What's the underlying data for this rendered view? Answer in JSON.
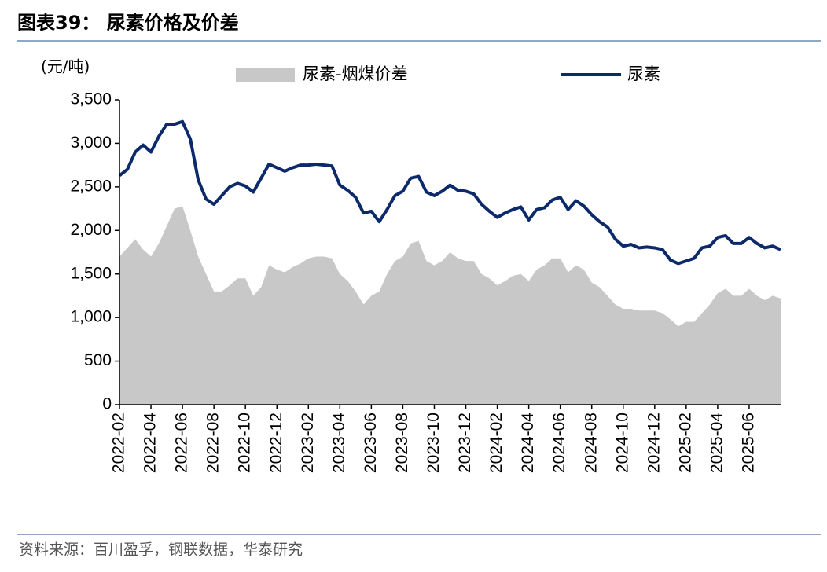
{
  "chart_data": {
    "type": "area-line",
    "title": "图表39： 尿素价格及价差",
    "unit_label": "(元/吨)",
    "source": "资料来源：百川盈孚，钢联数据，华泰研究",
    "categories": [
      "2022-02",
      null,
      null,
      null,
      "2022-04",
      null,
      null,
      null,
      "2022-06",
      null,
      null,
      null,
      "2022-08",
      null,
      null,
      null,
      "2022-10",
      null,
      null,
      null,
      "2022-12",
      null,
      null,
      null,
      "2023-02",
      null,
      null,
      null,
      "2023-04",
      null,
      null,
      null,
      "2023-06",
      null,
      null,
      null,
      "2023-08",
      null,
      null,
      null,
      "2023-10",
      null,
      null,
      null,
      "2023-12",
      null,
      null,
      null,
      "2024-02",
      null,
      null,
      null,
      "2024-04",
      null,
      null,
      null,
      "2024-06",
      null,
      null,
      null,
      "2024-08",
      null,
      null,
      null,
      "2024-10",
      null,
      null,
      null,
      "2024-12",
      null,
      null,
      null,
      "2025-02",
      null,
      null,
      null,
      "2025-04",
      null,
      null,
      null,
      "2025-06",
      null,
      null,
      null,
      null
    ],
    "series": [
      {
        "name": "尿素-烟煤价差",
        "kind": "area",
        "color": "#c8c8c8",
        "values": [
          1700,
          1800,
          1900,
          1780,
          1700,
          1850,
          2050,
          2250,
          2280,
          2000,
          1700,
          1500,
          1300,
          1300,
          1370,
          1450,
          1450,
          1250,
          1350,
          1600,
          1550,
          1520,
          1580,
          1620,
          1680,
          1700,
          1700,
          1680,
          1500,
          1420,
          1300,
          1150,
          1250,
          1300,
          1500,
          1650,
          1700,
          1850,
          1880,
          1650,
          1600,
          1650,
          1750,
          1680,
          1650,
          1650,
          1500,
          1450,
          1370,
          1420,
          1480,
          1500,
          1420,
          1550,
          1600,
          1680,
          1680,
          1520,
          1600,
          1550,
          1400,
          1350,
          1250,
          1150,
          1100,
          1100,
          1080,
          1080,
          1080,
          1050,
          980,
          900,
          950,
          950,
          1050,
          1150,
          1280,
          1330,
          1250,
          1250,
          1330,
          1250,
          1200,
          1250,
          1220
        ]
      },
      {
        "name": "尿素",
        "kind": "line",
        "color": "#0c2a6b",
        "values": [
          2630,
          2700,
          2900,
          2980,
          2900,
          3080,
          3220,
          3220,
          3250,
          3050,
          2580,
          2360,
          2300,
          2400,
          2500,
          2540,
          2510,
          2440,
          2600,
          2760,
          2720,
          2680,
          2720,
          2750,
          2750,
          2760,
          2750,
          2740,
          2520,
          2460,
          2380,
          2200,
          2220,
          2100,
          2240,
          2400,
          2450,
          2600,
          2620,
          2440,
          2400,
          2450,
          2520,
          2460,
          2450,
          2420,
          2300,
          2220,
          2150,
          2200,
          2240,
          2270,
          2120,
          2240,
          2260,
          2350,
          2380,
          2240,
          2340,
          2280,
          2180,
          2100,
          2040,
          1900,
          1820,
          1840,
          1800,
          1810,
          1800,
          1780,
          1660,
          1620,
          1650,
          1680,
          1800,
          1820,
          1920,
          1940,
          1850,
          1850,
          1920,
          1850,
          1800,
          1820,
          1780
        ]
      }
    ],
    "ylim": [
      0,
      3500
    ],
    "yticks": [
      0,
      500,
      {
        "value": 1000,
        "label": "1,000"
      },
      {
        "value": 1500,
        "label": "1,500"
      },
      {
        "value": 2000,
        "label": "2,000"
      },
      {
        "value": 2500,
        "label": "2,500"
      },
      {
        "value": 3000,
        "label": "3,000"
      },
      {
        "value": 3500,
        "label": "3,500"
      }
    ],
    "grid": false
  }
}
